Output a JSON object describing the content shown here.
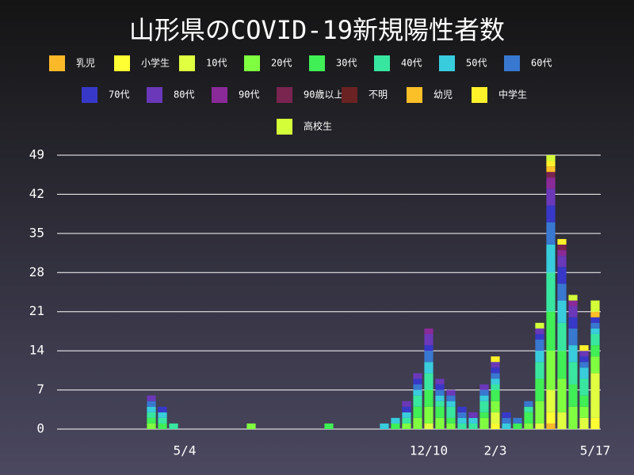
{
  "chart_data": {
    "type": "stacked-bar",
    "title": "山形県のCOVID-19新規陽性者数",
    "categories": [
      null,
      null,
      null,
      null,
      null,
      null,
      null,
      null,
      null,
      null,
      null,
      "5/4",
      null,
      null,
      null,
      null,
      null,
      null,
      null,
      null,
      null,
      null,
      null,
      null,
      null,
      null,
      null,
      null,
      null,
      null,
      null,
      null,
      null,
      "12/10",
      null,
      null,
      null,
      null,
      null,
      "2/3",
      null,
      null,
      null,
      null,
      null,
      null,
      null,
      null,
      "5/17"
    ],
    "ylim": [
      0,
      49
    ],
    "yticks": [
      0,
      7,
      14,
      21,
      28,
      35,
      42,
      49
    ],
    "grid": true,
    "series": [
      {
        "name": "乳児",
        "color": "#fbb829",
        "values": [
          0,
          0,
          0,
          0,
          0,
          0,
          0,
          0,
          0,
          0,
          0,
          0,
          0,
          0,
          0,
          0,
          0,
          0,
          0,
          0,
          0,
          0,
          0,
          0,
          0,
          0,
          0,
          0,
          0,
          0,
          0,
          0,
          0,
          0,
          0,
          0,
          0,
          0,
          0,
          0,
          0,
          0,
          0,
          0,
          1,
          0,
          0,
          0,
          0
        ]
      },
      {
        "name": "小学生",
        "color": "#ffff33",
        "values": [
          0,
          0,
          0,
          0,
          0,
          0,
          0,
          0,
          0,
          0,
          0,
          0,
          0,
          0,
          0,
          0,
          0,
          0,
          0,
          0,
          0,
          0,
          0,
          0,
          0,
          0,
          0,
          0,
          0,
          0,
          0,
          0,
          0,
          0,
          0,
          0,
          0,
          0,
          0,
          1,
          0,
          0,
          0,
          0,
          2,
          0,
          0,
          0,
          2
        ]
      },
      {
        "name": "10代",
        "color": "#dfff40",
        "values": [
          0,
          0,
          0,
          0,
          0,
          0,
          0,
          0,
          0,
          0,
          0,
          0,
          0,
          0,
          0,
          0,
          0,
          0,
          0,
          0,
          0,
          0,
          0,
          0,
          0,
          0,
          0,
          0,
          0,
          0,
          0,
          0,
          0,
          1,
          0,
          0,
          0,
          0,
          0,
          2,
          0,
          0,
          0,
          1,
          4,
          3,
          0,
          2,
          8
        ]
      },
      {
        "name": "20代",
        "color": "#80ff40",
        "values": [
          0,
          0,
          0,
          0,
          0,
          0,
          0,
          0,
          1,
          0,
          0,
          0,
          0,
          0,
          0,
          0,
          0,
          1,
          0,
          0,
          0,
          0,
          0,
          0,
          0,
          0,
          0,
          0,
          0,
          0,
          0,
          1,
          2,
          3,
          2,
          1,
          0,
          0,
          2,
          2,
          0,
          0,
          1,
          4,
          7,
          6,
          4,
          2,
          3
        ]
      },
      {
        "name": "30代",
        "color": "#40ee55",
        "values": [
          0,
          0,
          0,
          0,
          0,
          0,
          0,
          0,
          1,
          1,
          0,
          0,
          0,
          0,
          0,
          0,
          0,
          0,
          0,
          0,
          0,
          0,
          0,
          0,
          1,
          0,
          0,
          0,
          0,
          0,
          1,
          0,
          2,
          3,
          2,
          1,
          0,
          0,
          1,
          2,
          0,
          1,
          2,
          4,
          7,
          5,
          4,
          2,
          2
        ]
      },
      {
        "name": "40代",
        "color": "#38e6a0",
        "values": [
          0,
          0,
          0,
          0,
          0,
          0,
          0,
          0,
          1,
          1,
          1,
          0,
          0,
          0,
          0,
          0,
          0,
          0,
          0,
          0,
          0,
          0,
          0,
          0,
          0,
          0,
          0,
          0,
          0,
          0,
          0,
          1,
          2,
          3,
          1,
          2,
          1,
          1,
          2,
          1,
          0,
          0,
          1,
          3,
          7,
          5,
          4,
          3,
          2
        ]
      },
      {
        "name": "50代",
        "color": "#38ccdd",
        "values": [
          0,
          0,
          0,
          0,
          0,
          0,
          0,
          0,
          1,
          1,
          0,
          0,
          0,
          0,
          0,
          0,
          0,
          0,
          0,
          0,
          0,
          0,
          0,
          0,
          0,
          0,
          0,
          0,
          0,
          1,
          1,
          1,
          1,
          2,
          1,
          1,
          1,
          1,
          1,
          1,
          1,
          0,
          0,
          2,
          5,
          4,
          3,
          2,
          1
        ]
      },
      {
        "name": "60代",
        "color": "#3878d0",
        "values": [
          0,
          0,
          0,
          0,
          0,
          0,
          0,
          0,
          1,
          0,
          0,
          0,
          0,
          0,
          0,
          0,
          0,
          0,
          0,
          0,
          0,
          0,
          0,
          0,
          0,
          0,
          0,
          0,
          0,
          0,
          0,
          0,
          1,
          2,
          1,
          1,
          1,
          0,
          1,
          1,
          1,
          1,
          1,
          2,
          4,
          3,
          3,
          1,
          1
        ]
      },
      {
        "name": "70代",
        "color": "#3838c8",
        "values": [
          0,
          0,
          0,
          0,
          0,
          0,
          0,
          0,
          0,
          1,
          0,
          0,
          0,
          0,
          0,
          0,
          0,
          0,
          0,
          0,
          0,
          0,
          0,
          0,
          0,
          0,
          0,
          0,
          0,
          0,
          0,
          1,
          1,
          1,
          1,
          0,
          1,
          0,
          0,
          1,
          1,
          0,
          0,
          1,
          3,
          3,
          2,
          1,
          1
        ]
      },
      {
        "name": "80代",
        "color": "#6a38b8",
        "values": [
          0,
          0,
          0,
          0,
          0,
          0,
          0,
          0,
          1,
          0,
          0,
          0,
          0,
          0,
          0,
          0,
          0,
          0,
          0,
          0,
          0,
          0,
          0,
          0,
          0,
          0,
          0,
          0,
          0,
          0,
          0,
          1,
          1,
          2,
          1,
          1,
          0,
          1,
          1,
          1,
          0,
          0,
          0,
          1,
          3,
          2,
          2,
          1,
          0
        ]
      },
      {
        "name": "90代",
        "color": "#8a2a98",
        "values": [
          0,
          0,
          0,
          0,
          0,
          0,
          0,
          0,
          0,
          0,
          0,
          0,
          0,
          0,
          0,
          0,
          0,
          0,
          0,
          0,
          0,
          0,
          0,
          0,
          0,
          0,
          0,
          0,
          0,
          0,
          0,
          0,
          0,
          1,
          0,
          0,
          0,
          0,
          0,
          0,
          0,
          0,
          0,
          0,
          2,
          1,
          1,
          0,
          0
        ]
      },
      {
        "name": "90歳以上",
        "color": "#7a2450",
        "values": [
          0,
          0,
          0,
          0,
          0,
          0,
          0,
          0,
          0,
          0,
          0,
          0,
          0,
          0,
          0,
          0,
          0,
          0,
          0,
          0,
          0,
          0,
          0,
          0,
          0,
          0,
          0,
          0,
          0,
          0,
          0,
          0,
          0,
          0,
          0,
          0,
          0,
          0,
          0,
          0,
          0,
          0,
          0,
          0,
          1,
          1,
          0,
          0,
          0
        ]
      },
      {
        "name": "不明",
        "color": "#6a2222",
        "values": [
          0,
          0,
          0,
          0,
          0,
          0,
          0,
          0,
          0,
          0,
          0,
          0,
          0,
          0,
          0,
          0,
          0,
          0,
          0,
          0,
          0,
          0,
          0,
          0,
          0,
          0,
          0,
          0,
          0,
          0,
          0,
          0,
          0,
          0,
          0,
          0,
          0,
          0,
          0,
          0,
          0,
          0,
          0,
          0,
          0,
          0,
          0,
          0,
          0
        ]
      },
      {
        "name": "幼児",
        "color": "#fbbf28",
        "values": [
          0,
          0,
          0,
          0,
          0,
          0,
          0,
          0,
          0,
          0,
          0,
          0,
          0,
          0,
          0,
          0,
          0,
          0,
          0,
          0,
          0,
          0,
          0,
          0,
          0,
          0,
          0,
          0,
          0,
          0,
          0,
          0,
          0,
          0,
          0,
          0,
          0,
          0,
          0,
          0,
          0,
          0,
          0,
          0,
          1,
          0,
          0,
          0,
          1
        ]
      },
      {
        "name": "中学生",
        "color": "#fff22a",
        "values": [
          0,
          0,
          0,
          0,
          0,
          0,
          0,
          0,
          0,
          0,
          0,
          0,
          0,
          0,
          0,
          0,
          0,
          0,
          0,
          0,
          0,
          0,
          0,
          0,
          0,
          0,
          0,
          0,
          0,
          0,
          0,
          0,
          0,
          0,
          0,
          0,
          0,
          0,
          0,
          1,
          0,
          0,
          0,
          0,
          1,
          1,
          0,
          1,
          0
        ]
      },
      {
        "name": "高校生",
        "color": "#d4ff38",
        "values": [
          0,
          0,
          0,
          0,
          0,
          0,
          0,
          0,
          0,
          0,
          0,
          0,
          0,
          0,
          0,
          0,
          0,
          0,
          0,
          0,
          0,
          0,
          0,
          0,
          0,
          0,
          0,
          0,
          0,
          0,
          0,
          0,
          0,
          0,
          0,
          0,
          0,
          0,
          0,
          0,
          0,
          0,
          0,
          1,
          1,
          0,
          1,
          0,
          2
        ]
      }
    ]
  }
}
